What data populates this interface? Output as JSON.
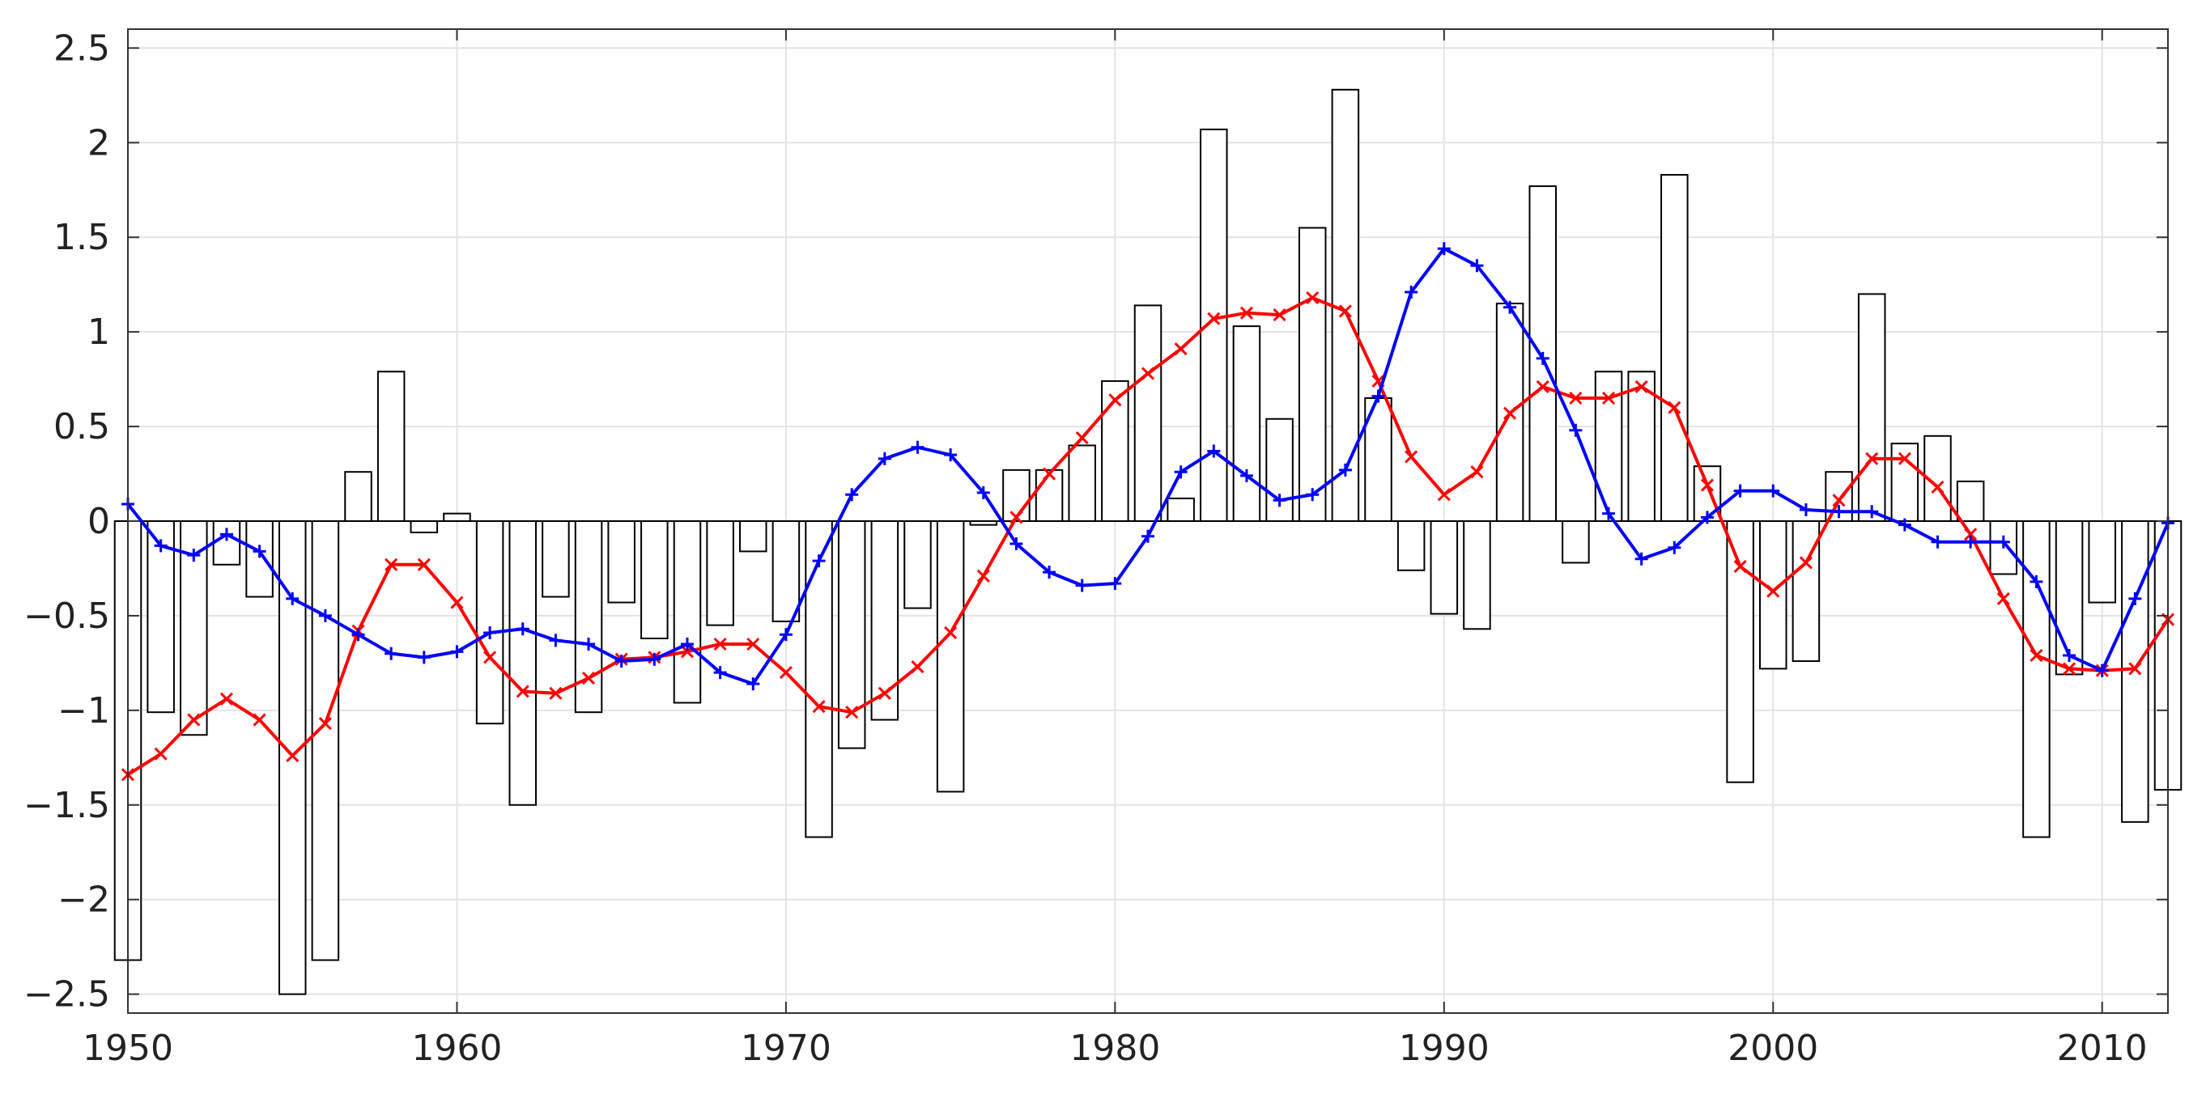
{
  "chart_data": {
    "type": "bar",
    "title": "",
    "xlabel": "",
    "ylabel": "",
    "xlim": [
      1950,
      2012
    ],
    "ylim": [
      -2.6,
      2.6
    ],
    "grid": true,
    "x_ticks": [
      1950,
      1960,
      1970,
      1980,
      1990,
      2000,
      2010
    ],
    "x_tick_labels": [
      "1950",
      "1960",
      "1970",
      "1980",
      "1990",
      "2000",
      "2010"
    ],
    "y_ticks": [
      -2.5,
      -2,
      -1.5,
      -1,
      -0.5,
      0,
      0.5,
      1,
      1.5,
      2,
      2.5
    ],
    "y_tick_labels": [
      "−2.5",
      "−2",
      "−1.5",
      "−1",
      "−0.5",
      "0",
      "0.5",
      "1",
      "1.5",
      "2",
      "2.5"
    ],
    "colors": {
      "bars_fill": "#ffffff",
      "bars_edge": "#000000",
      "red_series": "#ff0000",
      "blue_series": "#0000ff",
      "grid": "#e3e3e3"
    },
    "bars": {
      "x": [
        1950,
        1951,
        1952,
        1953,
        1954,
        1955,
        1956,
        1957,
        1958,
        1959,
        1960,
        1961,
        1962,
        1963,
        1964,
        1965,
        1966,
        1967,
        1968,
        1969,
        1970,
        1971,
        1972,
        1973,
        1974,
        1975,
        1976,
        1977,
        1978,
        1979,
        1980,
        1981,
        1982,
        1983,
        1984,
        1985,
        1986,
        1987,
        1988,
        1989,
        1990,
        1991,
        1992,
        1993,
        1994,
        1995,
        1996,
        1997,
        1998,
        1999,
        2000,
        2001,
        2002,
        2003,
        2004,
        2005,
        2006,
        2007,
        2008,
        2009,
        2010,
        2011,
        2012
      ],
      "values": [
        -2.32,
        -1.01,
        -1.13,
        -0.23,
        -0.4,
        -2.5,
        -2.32,
        0.26,
        0.79,
        -0.06,
        0.04,
        -1.07,
        -1.5,
        -0.4,
        -1.01,
        -0.43,
        -0.62,
        -0.96,
        -0.55,
        -0.16,
        -0.53,
        -1.67,
        -1.2,
        -1.05,
        -0.46,
        -1.43,
        -0.02,
        0.27,
        0.27,
        0.4,
        0.74,
        1.14,
        0.12,
        2.07,
        1.03,
        0.54,
        1.55,
        2.28,
        0.65,
        -0.26,
        -0.49,
        -0.57,
        1.15,
        1.77,
        -0.22,
        0.79,
        0.79,
        1.83,
        0.29,
        -1.38,
        -0.78,
        -0.74,
        0.26,
        1.2,
        0.41,
        0.45,
        0.21,
        -0.28,
        -1.67,
        -0.81,
        -0.43,
        -1.59,
        -1.42
      ]
    },
    "series": [
      {
        "color": "#ff0000",
        "marker": "x",
        "x": [
          1950,
          1951,
          1952,
          1953,
          1954,
          1955,
          1956,
          1957,
          1958,
          1959,
          1960,
          1961,
          1962,
          1963,
          1964,
          1965,
          1966,
          1967,
          1968,
          1969,
          1970,
          1971,
          1972,
          1973,
          1974,
          1975,
          1976,
          1977,
          1978,
          1979,
          1980,
          1981,
          1982,
          1983,
          1984,
          1985,
          1986,
          1987,
          1988,
          1989,
          1990,
          1991,
          1992,
          1993,
          1994,
          1995,
          1996,
          1997,
          1998,
          1999,
          2000,
          2001,
          2002,
          2003,
          2004,
          2005,
          2006,
          2007,
          2008,
          2009,
          2010,
          2011,
          2012
        ],
        "values": [
          -1.34,
          -1.23,
          -1.05,
          -0.94,
          -1.05,
          -1.24,
          -1.07,
          -0.58,
          -0.23,
          -0.23,
          -0.43,
          -0.72,
          -0.9,
          -0.91,
          -0.83,
          -0.73,
          -0.72,
          -0.69,
          -0.65,
          -0.65,
          -0.8,
          -0.98,
          -1.01,
          -0.91,
          -0.77,
          -0.59,
          -0.29,
          0.02,
          0.25,
          0.44,
          0.64,
          0.78,
          0.91,
          1.07,
          1.1,
          1.09,
          1.18,
          1.11,
          0.74,
          0.34,
          0.14,
          0.26,
          0.57,
          0.71,
          0.65,
          0.65,
          0.71,
          0.6,
          0.19,
          -0.24,
          -0.37,
          -0.22,
          0.11,
          0.33,
          0.33,
          0.18,
          -0.07,
          -0.41,
          -0.71,
          -0.78,
          -0.79,
          -0.78,
          -0.52
        ]
      },
      {
        "color": "#0000ff",
        "marker": "+",
        "x": [
          1950,
          1951,
          1952,
          1953,
          1954,
          1955,
          1956,
          1957,
          1958,
          1959,
          1960,
          1961,
          1962,
          1963,
          1964,
          1965,
          1966,
          1967,
          1968,
          1969,
          1970,
          1971,
          1972,
          1973,
          1974,
          1975,
          1976,
          1977,
          1978,
          1979,
          1980,
          1981,
          1982,
          1983,
          1984,
          1985,
          1986,
          1987,
          1988,
          1989,
          1990,
          1991,
          1992,
          1993,
          1994,
          1995,
          1996,
          1997,
          1998,
          1999,
          2000,
          2001,
          2002,
          2003,
          2004,
          2005,
          2006,
          2007,
          2008,
          2009,
          2010,
          2011,
          2012
        ],
        "values": [
          0.09,
          -0.13,
          -0.18,
          -0.07,
          -0.16,
          -0.41,
          -0.5,
          -0.6,
          -0.7,
          -0.72,
          -0.69,
          -0.59,
          -0.57,
          -0.63,
          -0.65,
          -0.74,
          -0.73,
          -0.65,
          -0.8,
          -0.86,
          -0.6,
          -0.21,
          0.14,
          0.33,
          0.39,
          0.35,
          0.15,
          -0.12,
          -0.27,
          -0.34,
          -0.33,
          -0.08,
          0.26,
          0.37,
          0.24,
          0.11,
          0.14,
          0.27,
          0.66,
          1.21,
          1.44,
          1.35,
          1.13,
          0.86,
          0.48,
          0.04,
          -0.2,
          -0.14,
          0.02,
          0.16,
          0.16,
          0.06,
          0.05,
          0.05,
          -0.02,
          -0.11,
          -0.11,
          -0.11,
          -0.32,
          -0.71,
          -0.79,
          -0.41,
          -0.01
        ]
      }
    ]
  }
}
